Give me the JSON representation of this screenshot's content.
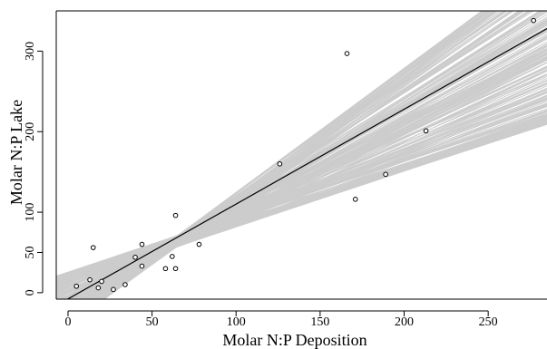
{
  "chart_data": {
    "type": "scatter",
    "title": "",
    "xlabel": "Molar N:P Deposition",
    "ylabel": "Molar N:P Lake",
    "xlim": [
      -7,
      285
    ],
    "ylim": [
      -8,
      350
    ],
    "x_ticks": [
      0,
      50,
      100,
      150,
      200,
      250
    ],
    "y_ticks": [
      0,
      50,
      100,
      200,
      300
    ],
    "grid": false,
    "legend": "none",
    "points": [
      {
        "x": 5,
        "y": 8
      },
      {
        "x": 13,
        "y": 16
      },
      {
        "x": 15,
        "y": 56
      },
      {
        "x": 18,
        "y": 6
      },
      {
        "x": 20,
        "y": 14
      },
      {
        "x": 27,
        "y": 4
      },
      {
        "x": 34,
        "y": 10
      },
      {
        "x": 40,
        "y": 44
      },
      {
        "x": 44,
        "y": 60
      },
      {
        "x": 44,
        "y": 33
      },
      {
        "x": 58,
        "y": 30
      },
      {
        "x": 62,
        "y": 45
      },
      {
        "x": 64,
        "y": 30
      },
      {
        "x": 64,
        "y": 96
      },
      {
        "x": 78,
        "y": 60
      },
      {
        "x": 126,
        "y": 160
      },
      {
        "x": 166,
        "y": 297
      },
      {
        "x": 171,
        "y": 116
      },
      {
        "x": 189,
        "y": 147
      },
      {
        "x": 213,
        "y": 201
      },
      {
        "x": 277,
        "y": 338
      }
    ],
    "fit_line": {
      "x": [
        -7,
        285
      ],
      "y": [
        -16,
        328
      ]
    },
    "bootstrap_band": {
      "count": 220,
      "color": "#cccccc",
      "x_range": [
        -7,
        285
      ],
      "slope_range": [
        0.68,
        1.55
      ],
      "intercept_range": [
        -12,
        20
      ],
      "pivot": {
        "x": 65,
        "y": 64
      }
    },
    "colors": {
      "fit_line": "#000000",
      "bootstrap_lines": "#cccccc",
      "points": "#000000",
      "axis": "#000000"
    }
  }
}
